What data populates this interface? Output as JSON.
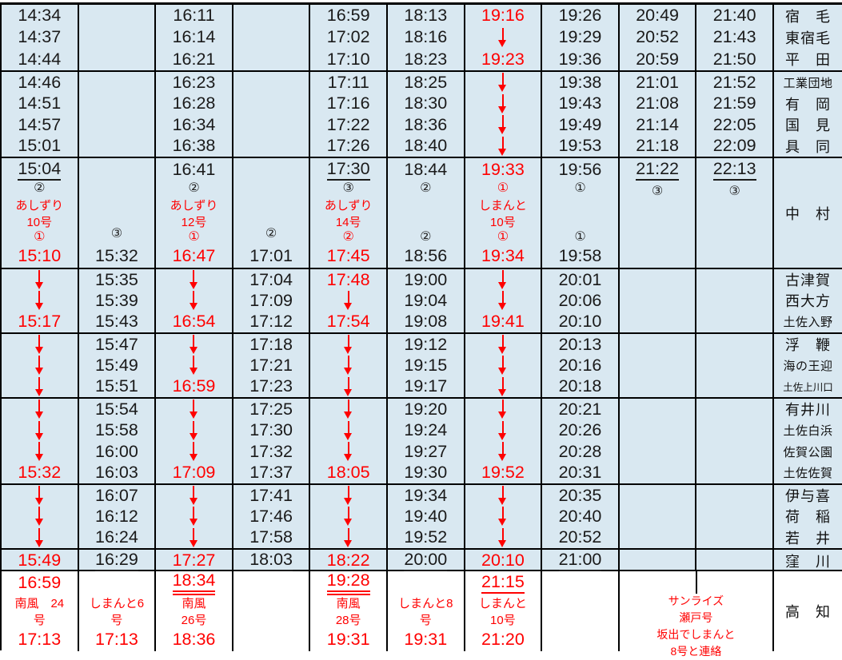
{
  "page": {
    "type": "train-timetable-page"
  },
  "colors": {
    "cell_background": "#d9e8f1",
    "bottom_section_background": "#ffffff",
    "accent_red": "#ff0000",
    "text_black": "#1a1a1a",
    "grid_line": "#000000"
  },
  "icons": {
    "down_arrow": "red long down arrow meaning train passes through without stopping",
    "circled_numbers": [
      "①",
      "②",
      "③"
    ]
  },
  "cell_encoding": {
    "K": "black time",
    "R": "red time",
    "U": "black underlined time",
    "V": "red underlined time",
    "W": "red double-underlined time",
    "A": "red down arrow",
    "C": "black circled platform number (index follows)",
    "D": "red circled platform number (index follows)",
    "N": "red train name text",
    ".": "empty cell"
  },
  "sections": [
    {
      "height": 84,
      "stations": [
        "宿　毛",
        "東宿毛",
        "平　田"
      ],
      "rows": [
        [
          "K14:34",
          ".",
          "K16:11",
          ".",
          "K16:59",
          "K18:13",
          "R19:16",
          "K19:26",
          "K20:49",
          "K21:40"
        ],
        [
          "K14:37",
          ".",
          "K16:14",
          ".",
          "K17:02",
          "K18:16",
          "A",
          "K19:29",
          "K20:52",
          "K21:43"
        ],
        [
          "K14:44",
          ".",
          "K16:21",
          ".",
          "K17:10",
          "K18:23",
          "R19:23",
          "K19:36",
          "K20:59",
          "K21:50"
        ]
      ]
    },
    {
      "height": 108,
      "stations": [
        "工業団地",
        "有　岡",
        "国　見",
        "具　同"
      ],
      "rows": [
        [
          "K14:46",
          ".",
          "K16:23",
          ".",
          "K17:11",
          "K18:25",
          "A",
          "K19:38",
          "K21:01",
          "K21:52"
        ],
        [
          "K14:51",
          ".",
          "K16:28",
          ".",
          "K17:16",
          "K18:30",
          "A",
          "K19:43",
          "K21:08",
          "K21:59"
        ],
        [
          "K14:57",
          ".",
          "K16:34",
          ".",
          "K17:22",
          "K18:36",
          "A",
          "K19:49",
          "K21:14",
          "K22:05"
        ],
        [
          "K15:01",
          ".",
          "K16:38",
          ".",
          "K17:26",
          "K18:40",
          "A",
          "K19:53",
          "K21:18",
          "K22:09"
        ]
      ]
    },
    {
      "height": 139,
      "station": "中　村",
      "row_kinds": [
        "time",
        "badge",
        "name",
        "name",
        "badge",
        "time"
      ],
      "rows": [
        [
          "U15:04",
          ".",
          "K16:41",
          ".",
          "U17:30",
          "K18:44",
          "R19:33",
          "K19:56",
          "U21:22",
          "U22:13"
        ],
        [
          "C2",
          ".",
          "C2",
          ".",
          "C3",
          "C2",
          "D1",
          "C1",
          "C3",
          "C3"
        ],
        [
          "Nあしずり",
          ".",
          "Nあしずり",
          ".",
          "Nあしずり",
          ".",
          "Nしまんと",
          ".",
          ".",
          "."
        ],
        [
          "N10号",
          ".",
          "N12号",
          ".",
          "N14号",
          ".",
          "N10号",
          ".",
          ".",
          "."
        ],
        [
          "D1",
          "C3",
          "D1",
          "C2",
          "D2",
          "C2",
          "D1",
          "C1",
          ".",
          "."
        ],
        [
          "R15:10",
          "K15:32",
          "R16:47",
          "K17:01",
          "R17:45",
          "K18:56",
          "R19:34",
          "K19:58",
          ".",
          "."
        ]
      ]
    },
    {
      "height": 81,
      "stations": [
        "古津賀",
        "西大方",
        "土佐入野"
      ],
      "rows": [
        [
          "A",
          "K15:35",
          "A",
          "K17:04",
          "R17:48",
          "K19:00",
          "A",
          "K20:01",
          ".",
          "."
        ],
        [
          "A",
          "K15:39",
          "A",
          "K17:09",
          "A",
          "K19:04",
          "A",
          "K20:06",
          ".",
          "."
        ],
        [
          "R15:17",
          "K15:43",
          "R16:54",
          "K17:12",
          "R17:54",
          "K19:08",
          "R19:41",
          "K20:10",
          ".",
          "."
        ]
      ]
    },
    {
      "height": 81,
      "stations": [
        "浮　鞭",
        "海の王迎",
        "土佐上川口"
      ],
      "rows": [
        [
          "A",
          "K15:47",
          "A",
          "K17:18",
          "A",
          "K19:12",
          "A",
          "K20:13",
          ".",
          "."
        ],
        [
          "A",
          "K15:49",
          "A",
          "K17:21",
          "A",
          "K19:15",
          "A",
          "K20:16",
          ".",
          "."
        ],
        [
          "A",
          "K15:51",
          "R16:59",
          "K17:23",
          "A",
          "K19:17",
          "A",
          "K20:18",
          ".",
          "."
        ]
      ]
    },
    {
      "height": 108,
      "stations": [
        "有井川",
        "土佐白浜",
        "佐賀公園",
        "土佐佐賀"
      ],
      "rows": [
        [
          "A",
          "K15:54",
          "A",
          "K17:25",
          "A",
          "K19:20",
          "A",
          "K20:21",
          ".",
          "."
        ],
        [
          "A",
          "K15:58",
          "A",
          "K17:30",
          "A",
          "K19:24",
          "A",
          "K20:26",
          ".",
          "."
        ],
        [
          "A",
          "K16:00",
          "A",
          "K17:32",
          "A",
          "K19:27",
          "A",
          "K20:28",
          ".",
          "."
        ],
        [
          "R15:32",
          "K16:03",
          "R17:09",
          "K17:37",
          "R18:05",
          "K19:30",
          "R19:52",
          "K20:31",
          ".",
          "."
        ]
      ]
    },
    {
      "height": 81,
      "stations": [
        "伊与喜",
        "荷　稲",
        "若　井"
      ],
      "rows": [
        [
          "A",
          "K16:07",
          "A",
          "K17:41",
          "A",
          "K19:34",
          "A",
          "K20:35",
          ".",
          "."
        ],
        [
          "A",
          "K16:12",
          "A",
          "K17:46",
          "A",
          "K19:40",
          "A",
          "K20:40",
          ".",
          "."
        ],
        [
          "A",
          "K16:24",
          "A",
          "K17:58",
          "A",
          "K19:52",
          "A",
          "K20:52",
          ".",
          "."
        ]
      ]
    },
    {
      "height": 27,
      "stations": [
        "窪　川"
      ],
      "rows": [
        [
          "R15:49",
          "U16:29",
          "R17:27",
          "U18:03",
          "R18:22",
          "U20:00",
          "R20:10",
          "U21:00",
          ".",
          "."
        ]
      ]
    },
    {
      "height": 99,
      "bg": "white",
      "station": "高　知",
      "row_kinds": [
        "time",
        "name",
        "name",
        "time"
      ],
      "rows": [
        [
          "R16:59",
          ".",
          "W18:34",
          ".",
          "W19:28",
          ".",
          "V21:15",
          "."
        ],
        [
          "N南風　24",
          "Nしまんと6",
          "N南風",
          ".",
          "N南風",
          "Nしまんと8",
          "Nしまんと",
          "."
        ],
        [
          "N号",
          "N号",
          "N26号",
          ".",
          "N28号",
          "N号",
          "N10号",
          "."
        ],
        [
          "R17:13",
          "R17:13",
          "R18:36",
          ".",
          "R19:31",
          "R19:31",
          "R21:20",
          "."
        ]
      ],
      "note": {
        "lines": [
          "サンライズ",
          "瀬戸号",
          "坂出でしまんと",
          "8号と連絡"
        ]
      }
    }
  ]
}
